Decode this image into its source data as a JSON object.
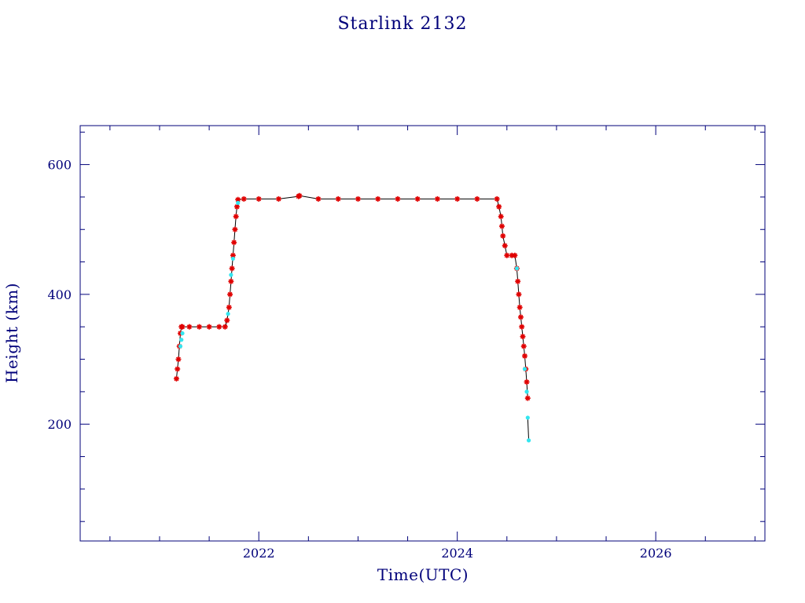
{
  "chart_data": {
    "type": "scatter",
    "title": "Starlink 2132",
    "xlabel": "Time(UTC)",
    "ylabel": "Height (km)",
    "xlim": [
      2020.2,
      2027.1
    ],
    "ylim": [
      20,
      660
    ],
    "x_ticks": [
      2022,
      2024,
      2026
    ],
    "x_tick_labels": [
      "2022",
      "2024",
      "2026"
    ],
    "y_ticks": [
      200,
      400,
      600
    ],
    "y_tick_labels": [
      "200",
      "400",
      "600"
    ],
    "grid": false,
    "legend": "none",
    "colors": {
      "axis": "#00007a",
      "text": "#00007a",
      "primary_points": "#e00000",
      "secondary_points": "#33e6f0",
      "connector_line": "#000000"
    },
    "series": [
      {
        "color_key": "primary_points",
        "marker": "star",
        "x": [
          2021.17,
          2021.18,
          2021.19,
          2021.2,
          2021.21,
          2021.22,
          2021.23,
          2021.3,
          2021.4,
          2021.5,
          2021.6,
          2021.66,
          2021.68,
          2021.7,
          2021.71,
          2021.72,
          2021.73,
          2021.74,
          2021.75,
          2021.76,
          2021.77,
          2021.78,
          2021.79,
          2021.85,
          2022.0,
          2022.2,
          2022.4,
          2022.41,
          2022.6,
          2022.8,
          2023.0,
          2023.2,
          2023.4,
          2023.6,
          2023.8,
          2024.0,
          2024.2,
          2024.4,
          2024.42,
          2024.44,
          2024.45,
          2024.46,
          2024.48,
          2024.5,
          2024.55,
          2024.58,
          2024.6,
          2024.61,
          2024.62,
          2024.63,
          2024.64,
          2024.65,
          2024.66,
          2024.67,
          2024.68,
          2024.69,
          2024.7,
          2024.71
        ],
        "y": [
          270,
          285,
          300,
          320,
          340,
          350,
          350,
          350,
          350,
          350,
          350,
          350,
          360,
          380,
          400,
          420,
          440,
          460,
          480,
          500,
          520,
          535,
          546,
          547,
          547,
          547,
          551,
          552,
          547,
          547,
          547,
          547,
          547,
          547,
          547,
          547,
          547,
          547,
          535,
          520,
          505,
          490,
          475,
          460,
          460,
          460,
          440,
          420,
          400,
          380,
          365,
          350,
          335,
          320,
          305,
          285,
          265,
          240
        ]
      },
      {
        "color_key": "secondary_points",
        "marker": "dot",
        "x": [
          2021.21,
          2021.22,
          2021.23,
          2021.69,
          2021.72,
          2021.74,
          2021.79,
          2024.6,
          2024.68,
          2024.7,
          2024.71,
          2024.72
        ],
        "y": [
          320,
          330,
          340,
          370,
          430,
          455,
          541,
          440,
          285,
          250,
          210,
          175
        ]
      }
    ]
  }
}
